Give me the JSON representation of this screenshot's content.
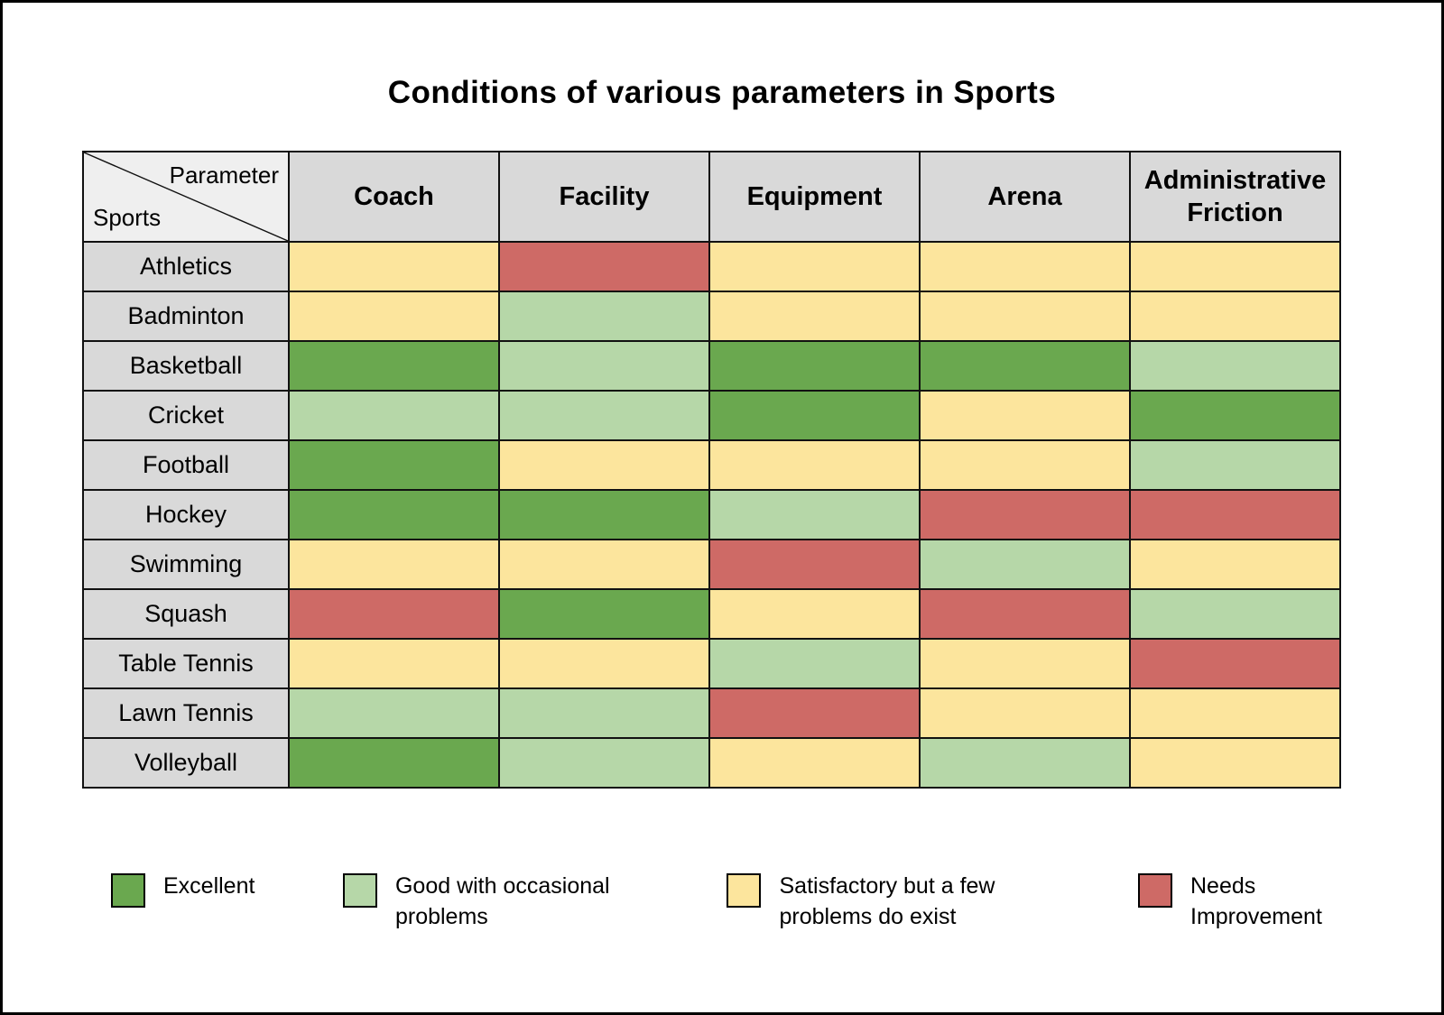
{
  "title": "Conditions of various parameters in Sports",
  "colors": {
    "excellent": "#6aa84f",
    "good": "#b6d7a8",
    "satisfactory": "#fce59d",
    "needs_improvement": "#ce6a66",
    "header_bg": "#d9d9d9",
    "corner_bg": "#efefef",
    "border": "#111111"
  },
  "table": {
    "corner": {
      "top_label": "Parameter",
      "bottom_label": "Sports"
    },
    "columns": [
      "Coach",
      "Facility",
      "Equipment",
      "Arena",
      "Administrative Friction"
    ],
    "rows": [
      {
        "sport": "Athletics",
        "values": [
          "satisfactory",
          "needs_improvement",
          "satisfactory",
          "satisfactory",
          "satisfactory"
        ]
      },
      {
        "sport": "Badminton",
        "values": [
          "satisfactory",
          "good",
          "satisfactory",
          "satisfactory",
          "satisfactory"
        ]
      },
      {
        "sport": "Basketball",
        "values": [
          "excellent",
          "good",
          "excellent",
          "excellent",
          "good"
        ]
      },
      {
        "sport": "Cricket",
        "values": [
          "good",
          "good",
          "excellent",
          "satisfactory",
          "excellent"
        ]
      },
      {
        "sport": "Football",
        "values": [
          "excellent",
          "satisfactory",
          "satisfactory",
          "satisfactory",
          "good"
        ]
      },
      {
        "sport": "Hockey",
        "values": [
          "excellent",
          "excellent",
          "good",
          "needs_improvement",
          "needs_improvement"
        ]
      },
      {
        "sport": "Swimming",
        "values": [
          "satisfactory",
          "satisfactory",
          "needs_improvement",
          "good",
          "satisfactory"
        ]
      },
      {
        "sport": "Squash",
        "values": [
          "needs_improvement",
          "excellent",
          "satisfactory",
          "needs_improvement",
          "good"
        ]
      },
      {
        "sport": "Table Tennis",
        "values": [
          "satisfactory",
          "satisfactory",
          "good",
          "satisfactory",
          "needs_improvement"
        ]
      },
      {
        "sport": "Lawn Tennis",
        "values": [
          "good",
          "good",
          "needs_improvement",
          "satisfactory",
          "satisfactory"
        ]
      },
      {
        "sport": "Volleyball",
        "values": [
          "excellent",
          "good",
          "satisfactory",
          "good",
          "satisfactory"
        ]
      }
    ]
  },
  "legend": [
    {
      "key": "excellent",
      "label": "Excellent"
    },
    {
      "key": "good",
      "label": "Good with occasional problems"
    },
    {
      "key": "satisfactory",
      "label": "Satisfactory but a few problems do exist"
    },
    {
      "key": "needs_improvement",
      "label": "Needs Improvement"
    }
  ],
  "chart_data": {
    "type": "heatmap",
    "title": "Conditions of various parameters in Sports",
    "x_categories": [
      "Coach",
      "Facility",
      "Equipment",
      "Arena",
      "Administrative Friction"
    ],
    "y_categories": [
      "Athletics",
      "Badminton",
      "Basketball",
      "Cricket",
      "Football",
      "Hockey",
      "Swimming",
      "Squash",
      "Table Tennis",
      "Lawn Tennis",
      "Volleyball"
    ],
    "value_scale": {
      "excellent": "Excellent",
      "good": "Good with occasional problems",
      "satisfactory": "Satisfactory but a few problems do exist",
      "needs_improvement": "Needs Improvement"
    },
    "values": [
      [
        "satisfactory",
        "needs_improvement",
        "satisfactory",
        "satisfactory",
        "satisfactory"
      ],
      [
        "satisfactory",
        "good",
        "satisfactory",
        "satisfactory",
        "satisfactory"
      ],
      [
        "excellent",
        "good",
        "excellent",
        "excellent",
        "good"
      ],
      [
        "good",
        "good",
        "excellent",
        "satisfactory",
        "excellent"
      ],
      [
        "excellent",
        "satisfactory",
        "satisfactory",
        "satisfactory",
        "good"
      ],
      [
        "excellent",
        "excellent",
        "good",
        "needs_improvement",
        "needs_improvement"
      ],
      [
        "satisfactory",
        "satisfactory",
        "needs_improvement",
        "good",
        "satisfactory"
      ],
      [
        "needs_improvement",
        "excellent",
        "satisfactory",
        "needs_improvement",
        "good"
      ],
      [
        "satisfactory",
        "satisfactory",
        "good",
        "satisfactory",
        "needs_improvement"
      ],
      [
        "good",
        "good",
        "needs_improvement",
        "satisfactory",
        "satisfactory"
      ],
      [
        "excellent",
        "good",
        "satisfactory",
        "good",
        "satisfactory"
      ]
    ],
    "legend_position": "bottom",
    "grid": true
  }
}
